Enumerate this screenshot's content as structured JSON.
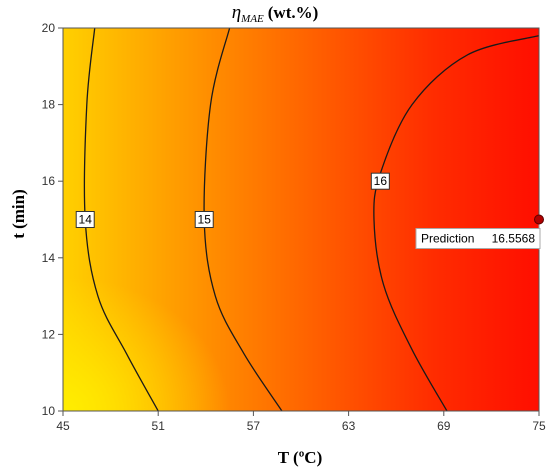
{
  "chart_data": {
    "type": "contour",
    "title": {
      "symbol": "η",
      "subscript": "MAE",
      "unit": "(wt.%)"
    },
    "xlabel": "T (ºC)",
    "ylabel": "t (min)",
    "xlim": [
      45,
      75
    ],
    "ylim": [
      10,
      20
    ],
    "xticks": [
      45,
      51,
      57,
      63,
      69,
      75
    ],
    "yticks": [
      10,
      12,
      14,
      16,
      18,
      20
    ],
    "contour_levels": [
      {
        "level": 14,
        "label": "14",
        "points": [
          [
            47.0,
            20
          ],
          [
            46.5,
            18
          ],
          [
            46.4,
            15
          ],
          [
            47.2,
            13
          ],
          [
            49.0,
            11.5
          ],
          [
            51.0,
            10
          ]
        ]
      },
      {
        "level": 15,
        "label": "15",
        "points": [
          [
            55.5,
            20
          ],
          [
            54.3,
            18
          ],
          [
            53.9,
            15
          ],
          [
            54.6,
            13
          ],
          [
            56.4,
            11.5
          ],
          [
            58.8,
            10
          ]
        ]
      },
      {
        "level": 16,
        "label": "16",
        "points": [
          [
            75.0,
            19.8
          ],
          [
            70.5,
            19.3
          ],
          [
            67.0,
            18.0
          ],
          [
            65.0,
            16.2
          ],
          [
            64.6,
            15
          ],
          [
            65.2,
            13.3
          ],
          [
            67.0,
            11.6
          ],
          [
            69.2,
            10
          ]
        ]
      }
    ],
    "color_scale": {
      "low": "#ffee00",
      "mid": "#ff8800",
      "high": "#ff1000"
    },
    "prediction": {
      "label": "Prediction",
      "value": "16.5568",
      "x": 75,
      "y": 15
    }
  }
}
